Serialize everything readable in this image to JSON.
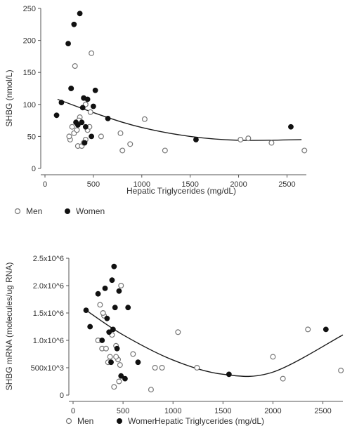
{
  "chart_data": [
    {
      "type": "scatter",
      "xlabel": "Hepatic Triglycerides (mg/dL)",
      "ylabel": "SHBG (nmol/L)",
      "xlim": [
        0,
        2700
      ],
      "ylim": [
        0,
        250
      ],
      "xticks": [
        "0",
        "500",
        "1000",
        "1500",
        "2000",
        "2500"
      ],
      "yticks": [
        "0",
        "50",
        "100",
        "150",
        "200",
        "250"
      ],
      "legend_position": "bottom-left",
      "fit_curve": {
        "type": "quadratic",
        "points": [
          [
            130,
            108
          ],
          [
            600,
            82
          ],
          [
            1000,
            64
          ],
          [
            1500,
            50
          ],
          [
            2000,
            44
          ],
          [
            2650,
            45
          ]
        ]
      },
      "series": [
        {
          "name": "Men",
          "marker": "open-circle",
          "x": [
            260,
            280,
            300,
            310,
            330,
            340,
            360,
            380,
            400,
            420,
            440,
            460,
            470,
            480,
            580,
            780,
            800,
            880,
            1030,
            1240,
            2020,
            2100,
            2340,
            2680,
            250,
            270,
            350,
            420
          ],
          "y": [
            45,
            65,
            55,
            160,
            60,
            35,
            80,
            35,
            40,
            45,
            60,
            65,
            88,
            180,
            50,
            55,
            28,
            38,
            77,
            28,
            45,
            47,
            40,
            28,
            50,
            125,
            75,
            100
          ]
        },
        {
          "name": "Women",
          "marker": "filled-circle",
          "x": [
            120,
            170,
            240,
            270,
            300,
            320,
            340,
            360,
            380,
            400,
            420,
            440,
            480,
            500,
            520,
            650,
            1560,
            2540,
            390,
            410
          ],
          "y": [
            83,
            103,
            195,
            125,
            225,
            72,
            68,
            242,
            72,
            110,
            65,
            108,
            50,
            97,
            122,
            78,
            45,
            65,
            95,
            40
          ]
        }
      ]
    },
    {
      "type": "scatter",
      "xlabel": "Hepatic Triglycerides (mg/dL)",
      "ylabel": "SHBG mRNA (molecules/ug RNA)",
      "xlim": [
        0,
        2700
      ],
      "ylim": [
        0,
        2500000
      ],
      "xticks": [
        "0",
        "500",
        "1000",
        "1500",
        "2000",
        "2500"
      ],
      "yticks": [
        "0",
        "500x10^3",
        "1.0x10^6",
        "1.5x10^6",
        "2.0x10^6",
        "2.5x10^6"
      ],
      "legend_position": "bottom-left",
      "fit_curve": {
        "type": "quadratic",
        "points": [
          [
            130,
            1550000
          ],
          [
            500,
            1100000
          ],
          [
            1000,
            640000
          ],
          [
            1500,
            380000
          ],
          [
            2000,
            420000
          ],
          [
            2700,
            1100000
          ]
        ]
      },
      "series": [
        {
          "name": "Men",
          "marker": "open-circle",
          "x": [
            250,
            270,
            290,
            310,
            330,
            350,
            370,
            390,
            410,
            430,
            450,
            470,
            480,
            600,
            780,
            820,
            890,
            1050,
            1240,
            2000,
            2100,
            2350,
            2680,
            300,
            430,
            460
          ],
          "y": [
            1000000,
            1650000,
            850000,
            1450000,
            850000,
            600000,
            700000,
            1100000,
            150000,
            900000,
            650000,
            550000,
            2000000,
            750000,
            100000,
            500000,
            500000,
            1150000,
            500000,
            700000,
            300000,
            1200000,
            450000,
            1500000,
            700000,
            250000
          ]
        },
        {
          "name": "Women",
          "marker": "filled-circle",
          "x": [
            130,
            170,
            250,
            290,
            320,
            340,
            360,
            390,
            410,
            420,
            440,
            460,
            480,
            520,
            550,
            650,
            1560,
            2530,
            380,
            400
          ],
          "y": [
            1550000,
            1250000,
            1850000,
            1000000,
            1950000,
            1400000,
            1150000,
            2100000,
            2350000,
            1600000,
            850000,
            1900000,
            350000,
            300000,
            1600000,
            600000,
            380000,
            1200000,
            600000,
            1200000
          ]
        }
      ]
    }
  ]
}
